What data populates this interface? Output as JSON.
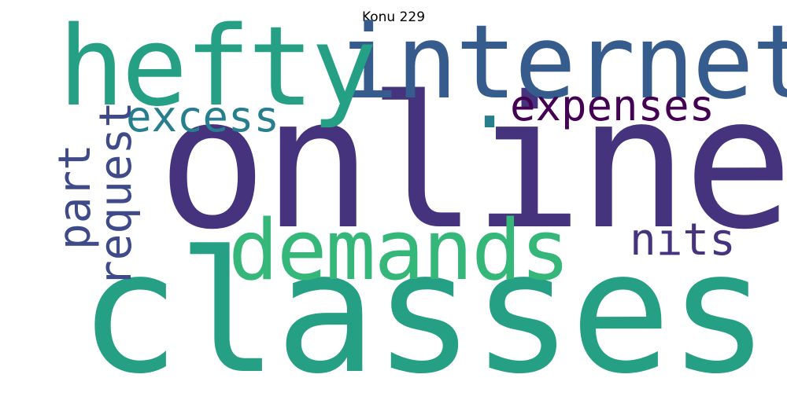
{
  "title": "Konu 229",
  "words": [
    {
      "text": "online",
      "color": "#46337e"
    },
    {
      "text": "classes",
      "color": "#25a085"
    },
    {
      "text": "internet",
      "color": "#365c8d"
    },
    {
      "text": "hefty",
      "color": "#25a085"
    },
    {
      "text": "demands",
      "color": "#35b779"
    },
    {
      "text": "expenses",
      "color": "#440154"
    },
    {
      "text": "excess",
      "color": "#277f8e"
    },
    {
      "text": "nits",
      "color": "#46337e"
    },
    {
      "text": "part",
      "color": "#3e4a89"
    },
    {
      "text": "request",
      "color": "#3e4a89"
    },
    {
      "text": ".",
      "color": "#277f8e"
    }
  ]
}
